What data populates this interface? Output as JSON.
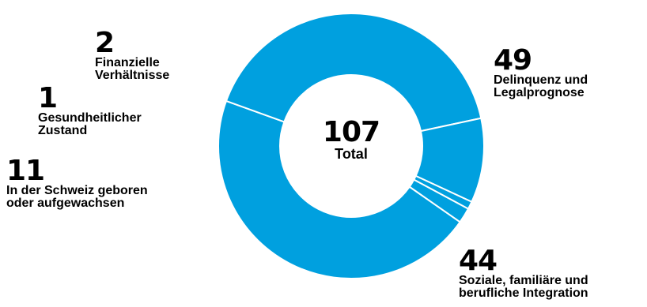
{
  "chart_data": {
    "type": "pie",
    "colors": {
      "slice": "#00a0df",
      "separator": "#ffffff",
      "text": "#000000"
    },
    "total": {
      "value": "107",
      "label": "Total"
    },
    "slices": [
      {
        "label": "Delinquenz und\nLegalprognose",
        "value": 49
      },
      {
        "label": "Soziale, familiäre und\nberufliche Integration",
        "value": 44
      },
      {
        "label": "In der Schweiz geboren\noder aufgewachsen",
        "value": 11
      },
      {
        "label": "Gesundheitlicher\nZustand",
        "value": 1
      },
      {
        "label": "Finanzielle\nVerhältnisse",
        "value": 2
      }
    ]
  }
}
